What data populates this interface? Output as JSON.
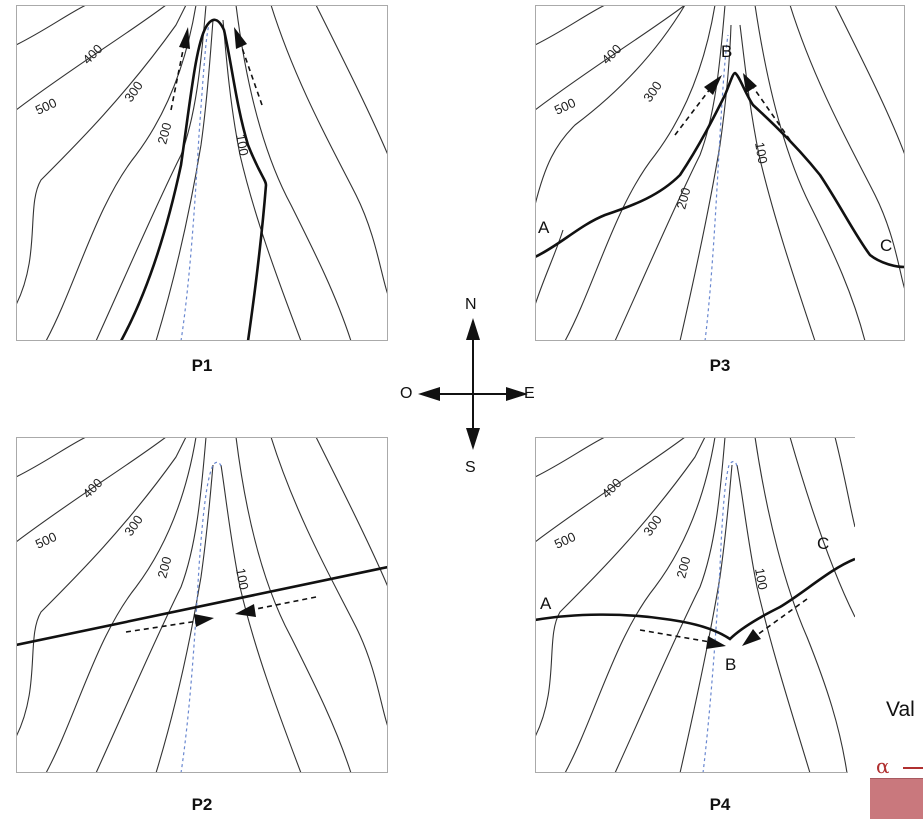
{
  "panels": [
    {
      "title": "P1"
    },
    {
      "title": "P3",
      "points": {
        "a": "A",
        "b": "B",
        "c": "C"
      }
    },
    {
      "title": "P2"
    },
    {
      "title": "P4",
      "points": {
        "a": "A",
        "b": "B",
        "c": "C"
      }
    }
  ],
  "contour_labels": {
    "c500": "500",
    "c400": "400",
    "c300": "300",
    "c200": "200",
    "c100": "100"
  },
  "compass": {
    "north": "N",
    "south": "S",
    "east": "E",
    "west": "O"
  },
  "fragment": {
    "text": "Val",
    "symbol": "α"
  }
}
